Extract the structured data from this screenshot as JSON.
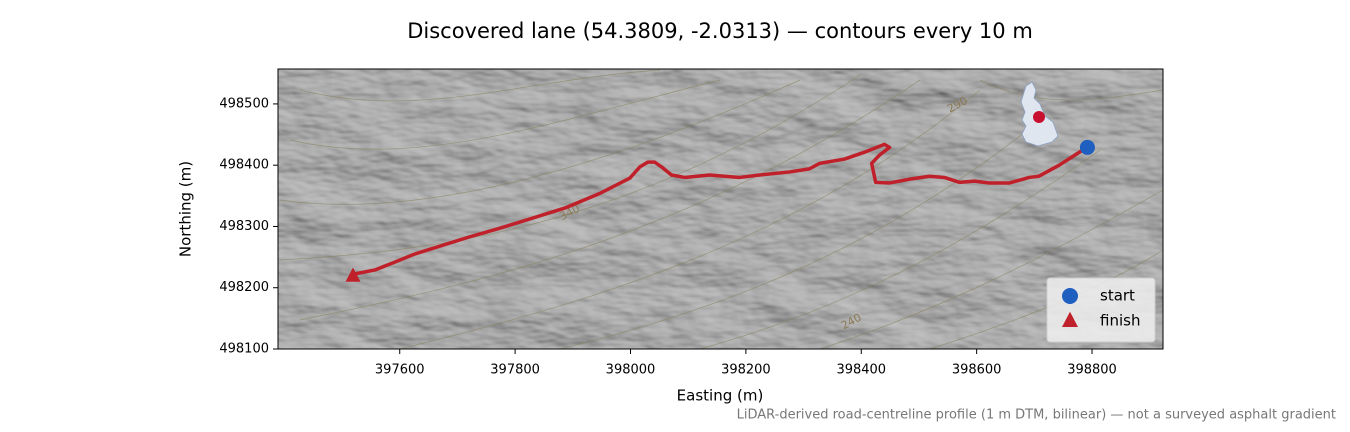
{
  "chart_data": {
    "type": "line",
    "title": "Discovered lane (54.3809, -2.0313) — contours every 10 m",
    "xlabel": "Easting (m)",
    "ylabel": "Northing (m)",
    "footnote": "LiDAR-derived road-centreline profile (1 m DTM, bilinear) — not a surveyed asphalt gradient",
    "xlim": [
      397389,
      398923
    ],
    "ylim": [
      498100,
      498557
    ],
    "xticks": [
      397600,
      397800,
      398000,
      398200,
      398400,
      398600,
      398800
    ],
    "yticks": [
      498100,
      498200,
      498300,
      498400,
      498500
    ],
    "legend": "lower right",
    "series": [
      {
        "color": "#c0202a",
        "x": [
          397519,
          397557,
          397592,
          397626,
          397670,
          397721,
          397773,
          397825,
          397886,
          397947,
          397999,
          398016,
          398030,
          398042,
          398054,
          398071,
          398094,
          398137,
          398189,
          398224,
          398276,
          398310,
          398328,
          398371,
          398405,
          398440,
          398449,
          398431,
          398418,
          398425,
          398449,
          398483,
          398518,
          398544,
          398570,
          398596,
          398622,
          398657,
          398691,
          398708,
          398743,
          398786
        ],
        "y": [
          498222,
          498229,
          498242,
          498255,
          498268,
          498283,
          498297,
          498312,
          498330,
          498354,
          498379,
          498397,
          498405,
          498405,
          498397,
          498384,
          498380,
          498384,
          498380,
          498384,
          498389,
          498394,
          498403,
          498410,
          498421,
          498434,
          498429,
          498416,
          498403,
          498372,
          498371,
          498377,
          498382,
          498380,
          498372,
          498374,
          498371,
          498371,
          498380,
          498382,
          498400,
          498426
        ]
      }
    ],
    "markers": [
      {
        "name": "start",
        "shape": "circle",
        "color": "#1f5fbf",
        "x": 398792,
        "y": 498429
      },
      {
        "name": "finish",
        "shape": "triangle",
        "color": "#c0202a",
        "x": 397519,
        "y": 498219
      }
    ],
    "annotations": [
      {
        "text": "290",
        "x": 398567,
        "y": 498498
      },
      {
        "text": "340",
        "x": 397895,
        "y": 498322
      },
      {
        "text": "240",
        "x": 398383,
        "y": 498144
      }
    ]
  }
}
